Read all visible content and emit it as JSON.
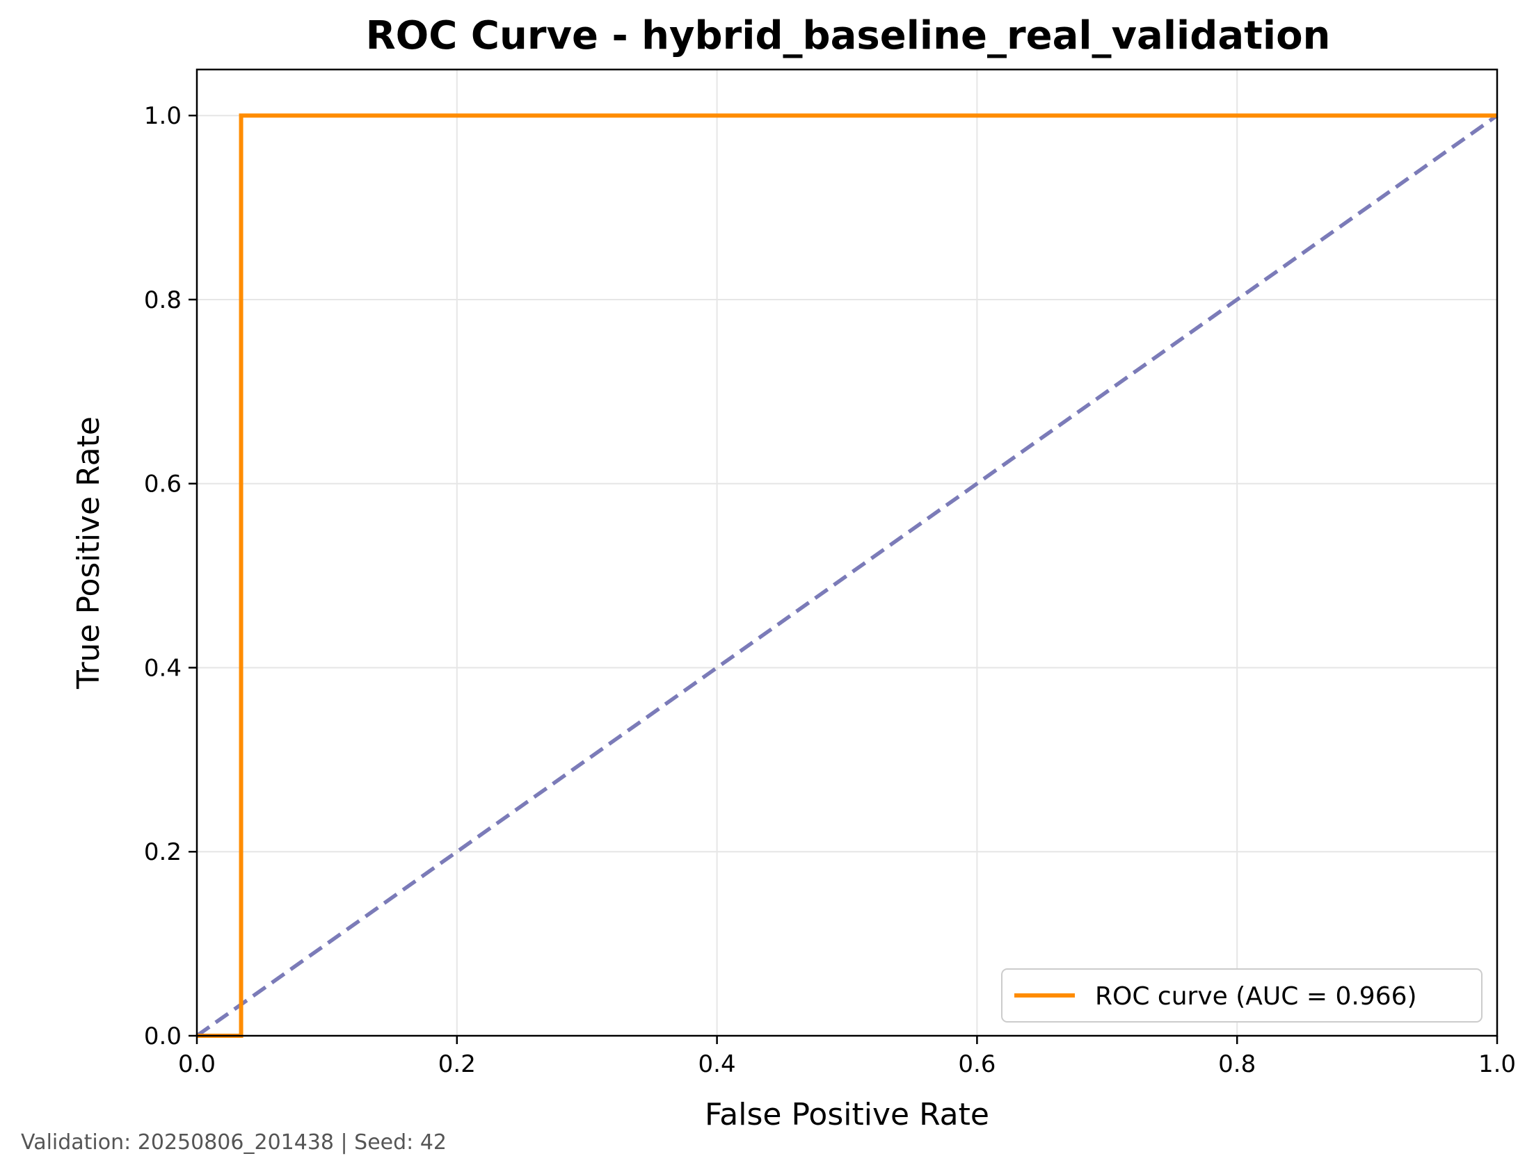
{
  "chart_data": {
    "type": "line",
    "title": "ROC Curve - hybrid_baseline_real_validation",
    "xlabel": "False Positive Rate",
    "ylabel": "True Positive Rate",
    "xlim": [
      0.0,
      1.0
    ],
    "ylim": [
      0.0,
      1.05
    ],
    "x_ticks": [
      "0.0",
      "0.2",
      "0.4",
      "0.6",
      "0.8",
      "1.0"
    ],
    "y_ticks": [
      "0.0",
      "0.2",
      "0.4",
      "0.6",
      "0.8",
      "1.0"
    ],
    "x_tick_values": [
      0.0,
      0.2,
      0.4,
      0.6,
      0.8,
      1.0
    ],
    "y_tick_values": [
      0.0,
      0.2,
      0.4,
      0.6,
      0.8,
      1.0
    ],
    "grid": true,
    "legend_position": "bottom-right",
    "series": [
      {
        "name": "ROC curve (AUC = 0.966)",
        "color": "#ff8c00",
        "style": "solid",
        "x": [
          0.0,
          0.034,
          0.034,
          1.0
        ],
        "y": [
          0.0,
          0.0,
          1.0,
          1.0
        ]
      },
      {
        "color": "#7b7bb8",
        "style": "dashed",
        "x": [
          0.0,
          1.0
        ],
        "y": [
          0.0,
          1.0
        ]
      }
    ]
  },
  "footer": "Validation: 20250806_201438 | Seed: 42"
}
